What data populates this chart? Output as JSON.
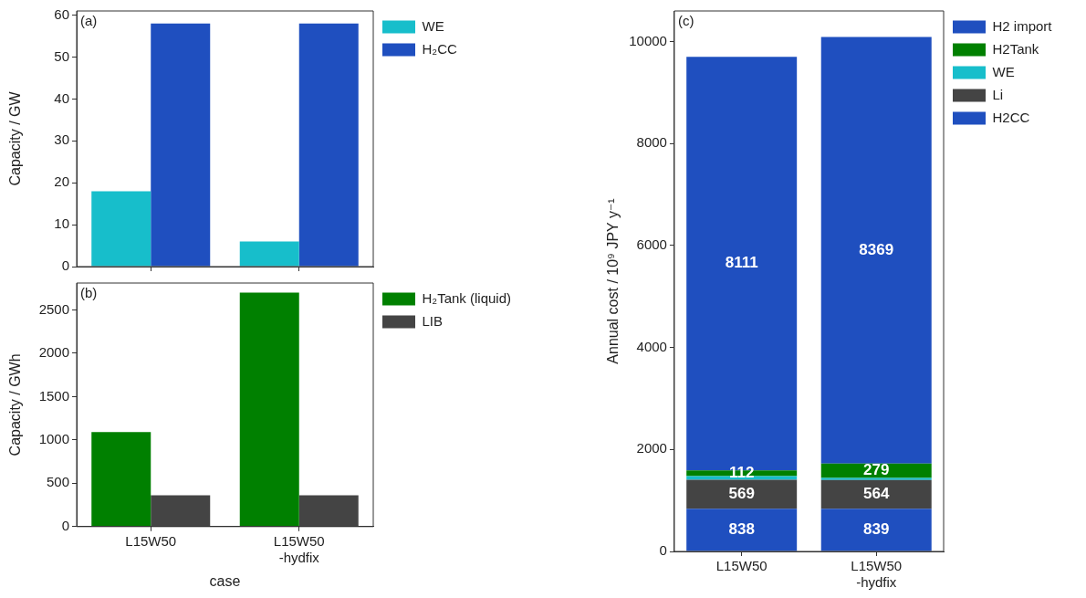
{
  "chart_data": [
    {
      "type": "bar",
      "categories": [
        null,
        null
      ],
      "ylabel": "Capacity / GW",
      "ylim": [
        0,
        61
      ],
      "yticks": [
        0,
        10,
        20,
        30,
        40,
        50,
        60
      ],
      "legend": "top right",
      "grid": false,
      "tick_labels": "y",
      "annotations": [
        "(a)"
      ],
      "series": [
        {
          "name": "WE",
          "color": "#17becb",
          "values": [
            18,
            6
          ]
        },
        {
          "name": "H₂CC",
          "color": "#1f4fbf",
          "values": [
            58,
            58
          ]
        }
      ]
    },
    {
      "type": "bar",
      "categories": [
        "L15W50",
        "L15W50 -hydfix"
      ],
      "xlabel": "case",
      "ylabel": "Capacity / GWh",
      "ylim": [
        0,
        2810
      ],
      "yticks": [
        0,
        500,
        1000,
        1500,
        2000,
        2500
      ],
      "legend": "top right",
      "grid": false,
      "annotations": [
        "(b)"
      ],
      "series": [
        {
          "name": "H₂Tank (liquid)",
          "color": "#008000",
          "values": [
            1090,
            2700
          ]
        },
        {
          "name": "LIB",
          "color": "#444444",
          "values": [
            360,
            360
          ]
        }
      ]
    },
    {
      "type": "bar",
      "stacked": true,
      "categories": [
        "L15W50",
        "L15W50 -hydfix"
      ],
      "ylabel": "Annual cost / 10⁹ JPY y⁻¹",
      "ylim": [
        0,
        10600
      ],
      "yticks": [
        0,
        2000,
        4000,
        6000,
        8000,
        10000
      ],
      "legend": "top right",
      "grid": false,
      "annotations": [
        "(c)"
      ],
      "series": [
        {
          "name": "H2CC",
          "color": "#1f4fbf",
          "values": [
            838,
            839
          ],
          "value_labels": [
            "838",
            "839"
          ]
        },
        {
          "name": "Li",
          "color": "#444444",
          "values": [
            569,
            564
          ],
          "value_labels": [
            "569",
            "564"
          ]
        },
        {
          "name": "WE",
          "color": "#17becb",
          "values": [
            70,
            40
          ]
        },
        {
          "name": "H2Tank",
          "color": "#008000",
          "values": [
            112,
            279
          ],
          "value_labels": [
            "112",
            "279"
          ]
        },
        {
          "name": "H2 import",
          "color": "#1f4fbf",
          "values": [
            8111,
            8369
          ],
          "value_labels": [
            "8111",
            "8369"
          ]
        }
      ]
    }
  ]
}
